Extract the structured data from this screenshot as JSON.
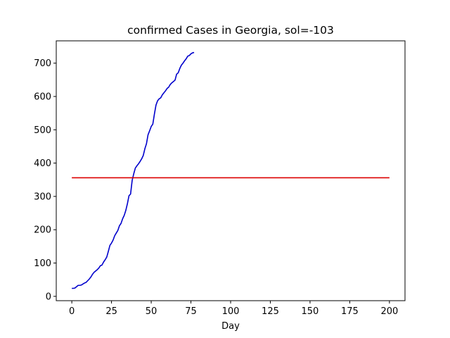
{
  "chart_data": {
    "type": "line",
    "title": "confirmed Cases in Georgia, sol=-103",
    "xlabel": "Day",
    "ylabel": "",
    "xlim": [
      -9.8,
      209.8
    ],
    "ylim": [
      -13,
      767
    ],
    "xticks": [
      0,
      25,
      50,
      75,
      100,
      125,
      150,
      175,
      200
    ],
    "yticks": [
      0,
      100,
      200,
      300,
      400,
      500,
      600,
      700
    ],
    "grid": false,
    "legend": "none",
    "series": [
      {
        "color": "#0000cc",
        "x": [
          0,
          1,
          2,
          3,
          4,
          5,
          6,
          7,
          8,
          9,
          10,
          11,
          12,
          13,
          14,
          15,
          16,
          17,
          18,
          19,
          20,
          21,
          22,
          23,
          24,
          25,
          26,
          27,
          28,
          29,
          30,
          31,
          32,
          33,
          34,
          35,
          36,
          37,
          38,
          39,
          40,
          41,
          42,
          43,
          44,
          45,
          46,
          47,
          48,
          49,
          50,
          51,
          52,
          53,
          54,
          55,
          56,
          57,
          58,
          59,
          60,
          61,
          62,
          63,
          64,
          65,
          66,
          67,
          68,
          69,
          70,
          71,
          72,
          73,
          74,
          75,
          76,
          77
        ],
        "y": [
          24,
          24,
          25,
          29,
          33,
          33,
          34,
          37,
          40,
          42,
          47,
          52,
          58,
          66,
          72,
          76,
          80,
          85,
          92,
          94,
          103,
          110,
          118,
          135,
          153,
          160,
          169,
          182,
          190,
          198,
          212,
          219,
          233,
          243,
          258,
          278,
          302,
          307,
          348,
          368,
          385,
          392,
          398,
          405,
          413,
          423,
          443,
          458,
          485,
          497,
          510,
          517,
          547,
          574,
          587,
          593,
          596,
          605,
          611,
          617,
          624,
          628,
          636,
          641,
          645,
          649,
          667,
          671,
          684,
          694,
          700,
          707,
          713,
          721,
          723,
          728,
          731,
          732
        ]
      },
      {
        "color": "#dd0000",
        "x": [
          0,
          200
        ],
        "y": [
          356,
          356
        ]
      }
    ]
  }
}
